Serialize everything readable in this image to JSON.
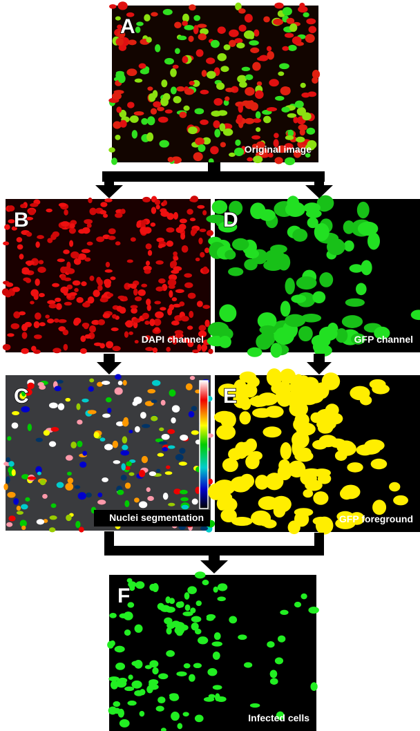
{
  "panels": [
    {
      "letter": "A",
      "caption": "Original image"
    },
    {
      "letter": "B",
      "caption": "DAPI channel"
    },
    {
      "letter": "D",
      "caption": "GFP channel"
    },
    {
      "letter": "C",
      "caption": "Nuclei segmentation"
    },
    {
      "letter": "E",
      "caption": "GFP foreground"
    },
    {
      "letter": "F",
      "caption": "Infected cells"
    }
  ]
}
